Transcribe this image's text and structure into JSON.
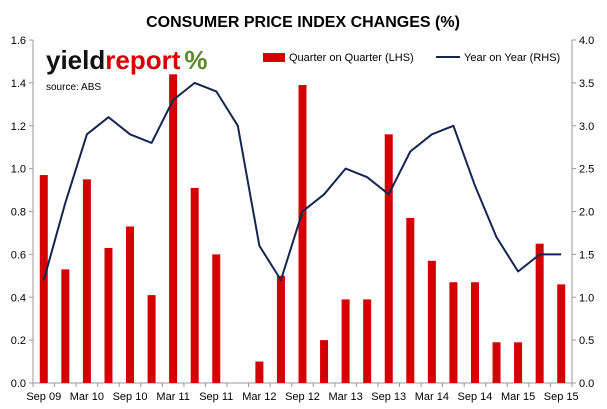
{
  "chart_data": {
    "type": "bar+line",
    "title": "CONSUMER PRICE INDEX CHANGES (%)",
    "categories": [
      "Sep 09",
      "Dec 09",
      "Mar 10",
      "Jun 10",
      "Sep 10",
      "Dec 10",
      "Mar 11",
      "Jun 11",
      "Sep 11",
      "Dec 11",
      "Mar 12",
      "Jun 12",
      "Sep 12",
      "Dec 12",
      "Mar 13",
      "Jun 13",
      "Sep 13",
      "Dec 13",
      "Mar 14",
      "Jun 14",
      "Sep 14",
      "Dec 14",
      "Mar 15",
      "Jun 15",
      "Sep 15"
    ],
    "x_tick_labels": [
      "Sep 09",
      "Mar 10",
      "Sep 10",
      "Mar 11",
      "Sep 11",
      "Mar 12",
      "Sep 12",
      "Mar 13",
      "Sep 13",
      "Mar 14",
      "Sep 14",
      "Mar 15",
      "Sep 15"
    ],
    "series": [
      {
        "name": "Quarter on Quarter (LHS)",
        "type": "bar",
        "axis": "left",
        "values": [
          0.97,
          0.53,
          0.95,
          0.63,
          0.73,
          0.41,
          1.44,
          0.91,
          0.6,
          0.0,
          0.1,
          0.5,
          1.39,
          0.2,
          0.39,
          0.39,
          1.16,
          0.77,
          0.57,
          0.47,
          0.47,
          0.19,
          0.19,
          0.65,
          0.46
        ],
        "color": "#d40000"
      },
      {
        "name": "Year on Year (RHS)",
        "type": "line",
        "axis": "right",
        "values": [
          1.2,
          2.1,
          2.9,
          3.1,
          2.9,
          2.8,
          3.3,
          3.5,
          3.4,
          3.0,
          1.6,
          1.2,
          2.0,
          2.2,
          2.5,
          2.4,
          2.2,
          2.7,
          2.9,
          3.0,
          2.3,
          1.7,
          1.3,
          1.5,
          1.5
        ],
        "color": "#14254f"
      }
    ],
    "ylim_left": [
      0,
      1.6
    ],
    "ylim_right": [
      0,
      4.0
    ],
    "yticks_left": [
      "0.0",
      "0.2",
      "0.4",
      "0.6",
      "0.8",
      "1.0",
      "1.2",
      "1.4",
      "1.6"
    ],
    "yticks_right": [
      "0.0",
      "0.5",
      "1.0",
      "1.5",
      "2.0",
      "2.5",
      "3.0",
      "3.5",
      "4.0"
    ],
    "grid": false,
    "legend_position": "top"
  },
  "logo": {
    "text_a": "yield",
    "text_b": "report",
    "symbol": "%",
    "color_a": "#111111",
    "color_b": "#d40000",
    "symbol_color": "#5c8a2a"
  },
  "source_note": "source: ABS"
}
